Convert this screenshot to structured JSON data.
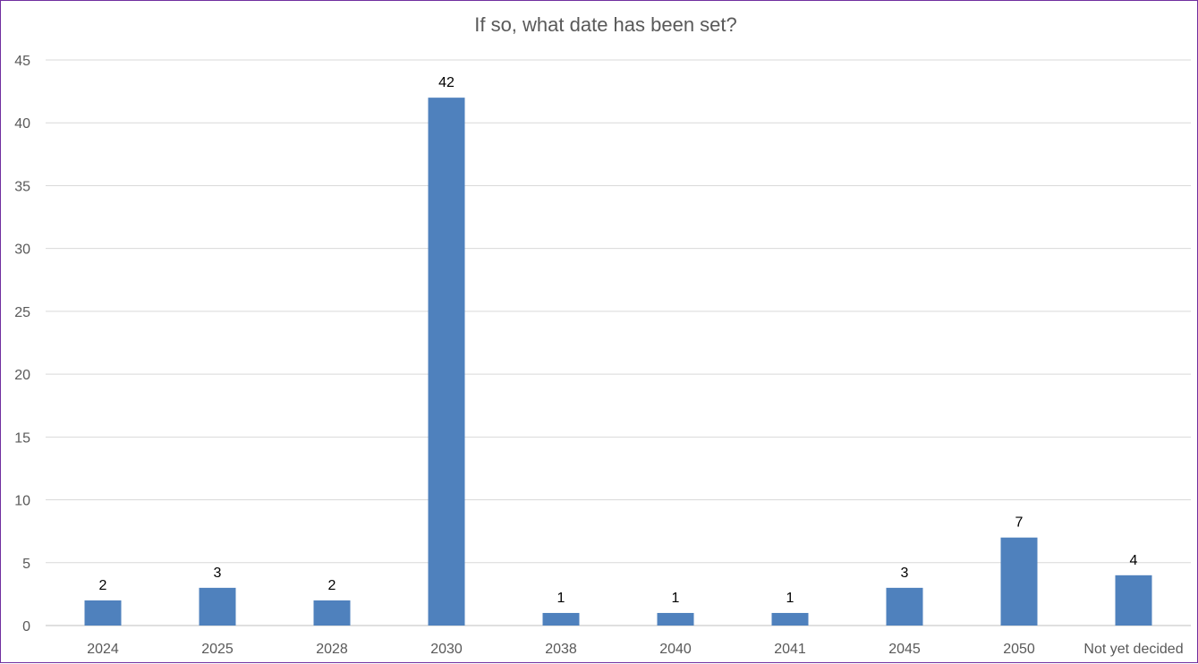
{
  "chart_data": {
    "type": "bar",
    "title": "If so, what date has been set?",
    "xlabel": "",
    "ylabel": "",
    "categories": [
      "2024",
      "2025",
      "2028",
      "2030",
      "2038",
      "2040",
      "2041",
      "2045",
      "2050",
      "Not yet decided"
    ],
    "values": [
      2,
      3,
      2,
      42,
      1,
      1,
      1,
      3,
      7,
      4
    ],
    "ylim": [
      0,
      45
    ],
    "yticks": [
      0,
      5,
      10,
      15,
      20,
      25,
      30,
      35,
      40,
      45
    ],
    "grid": true,
    "legend": "none",
    "data_labels": true,
    "colors": {
      "bar": "#4f81bd",
      "grid": "#d9d9d9",
      "frame": "#7030a0"
    }
  }
}
